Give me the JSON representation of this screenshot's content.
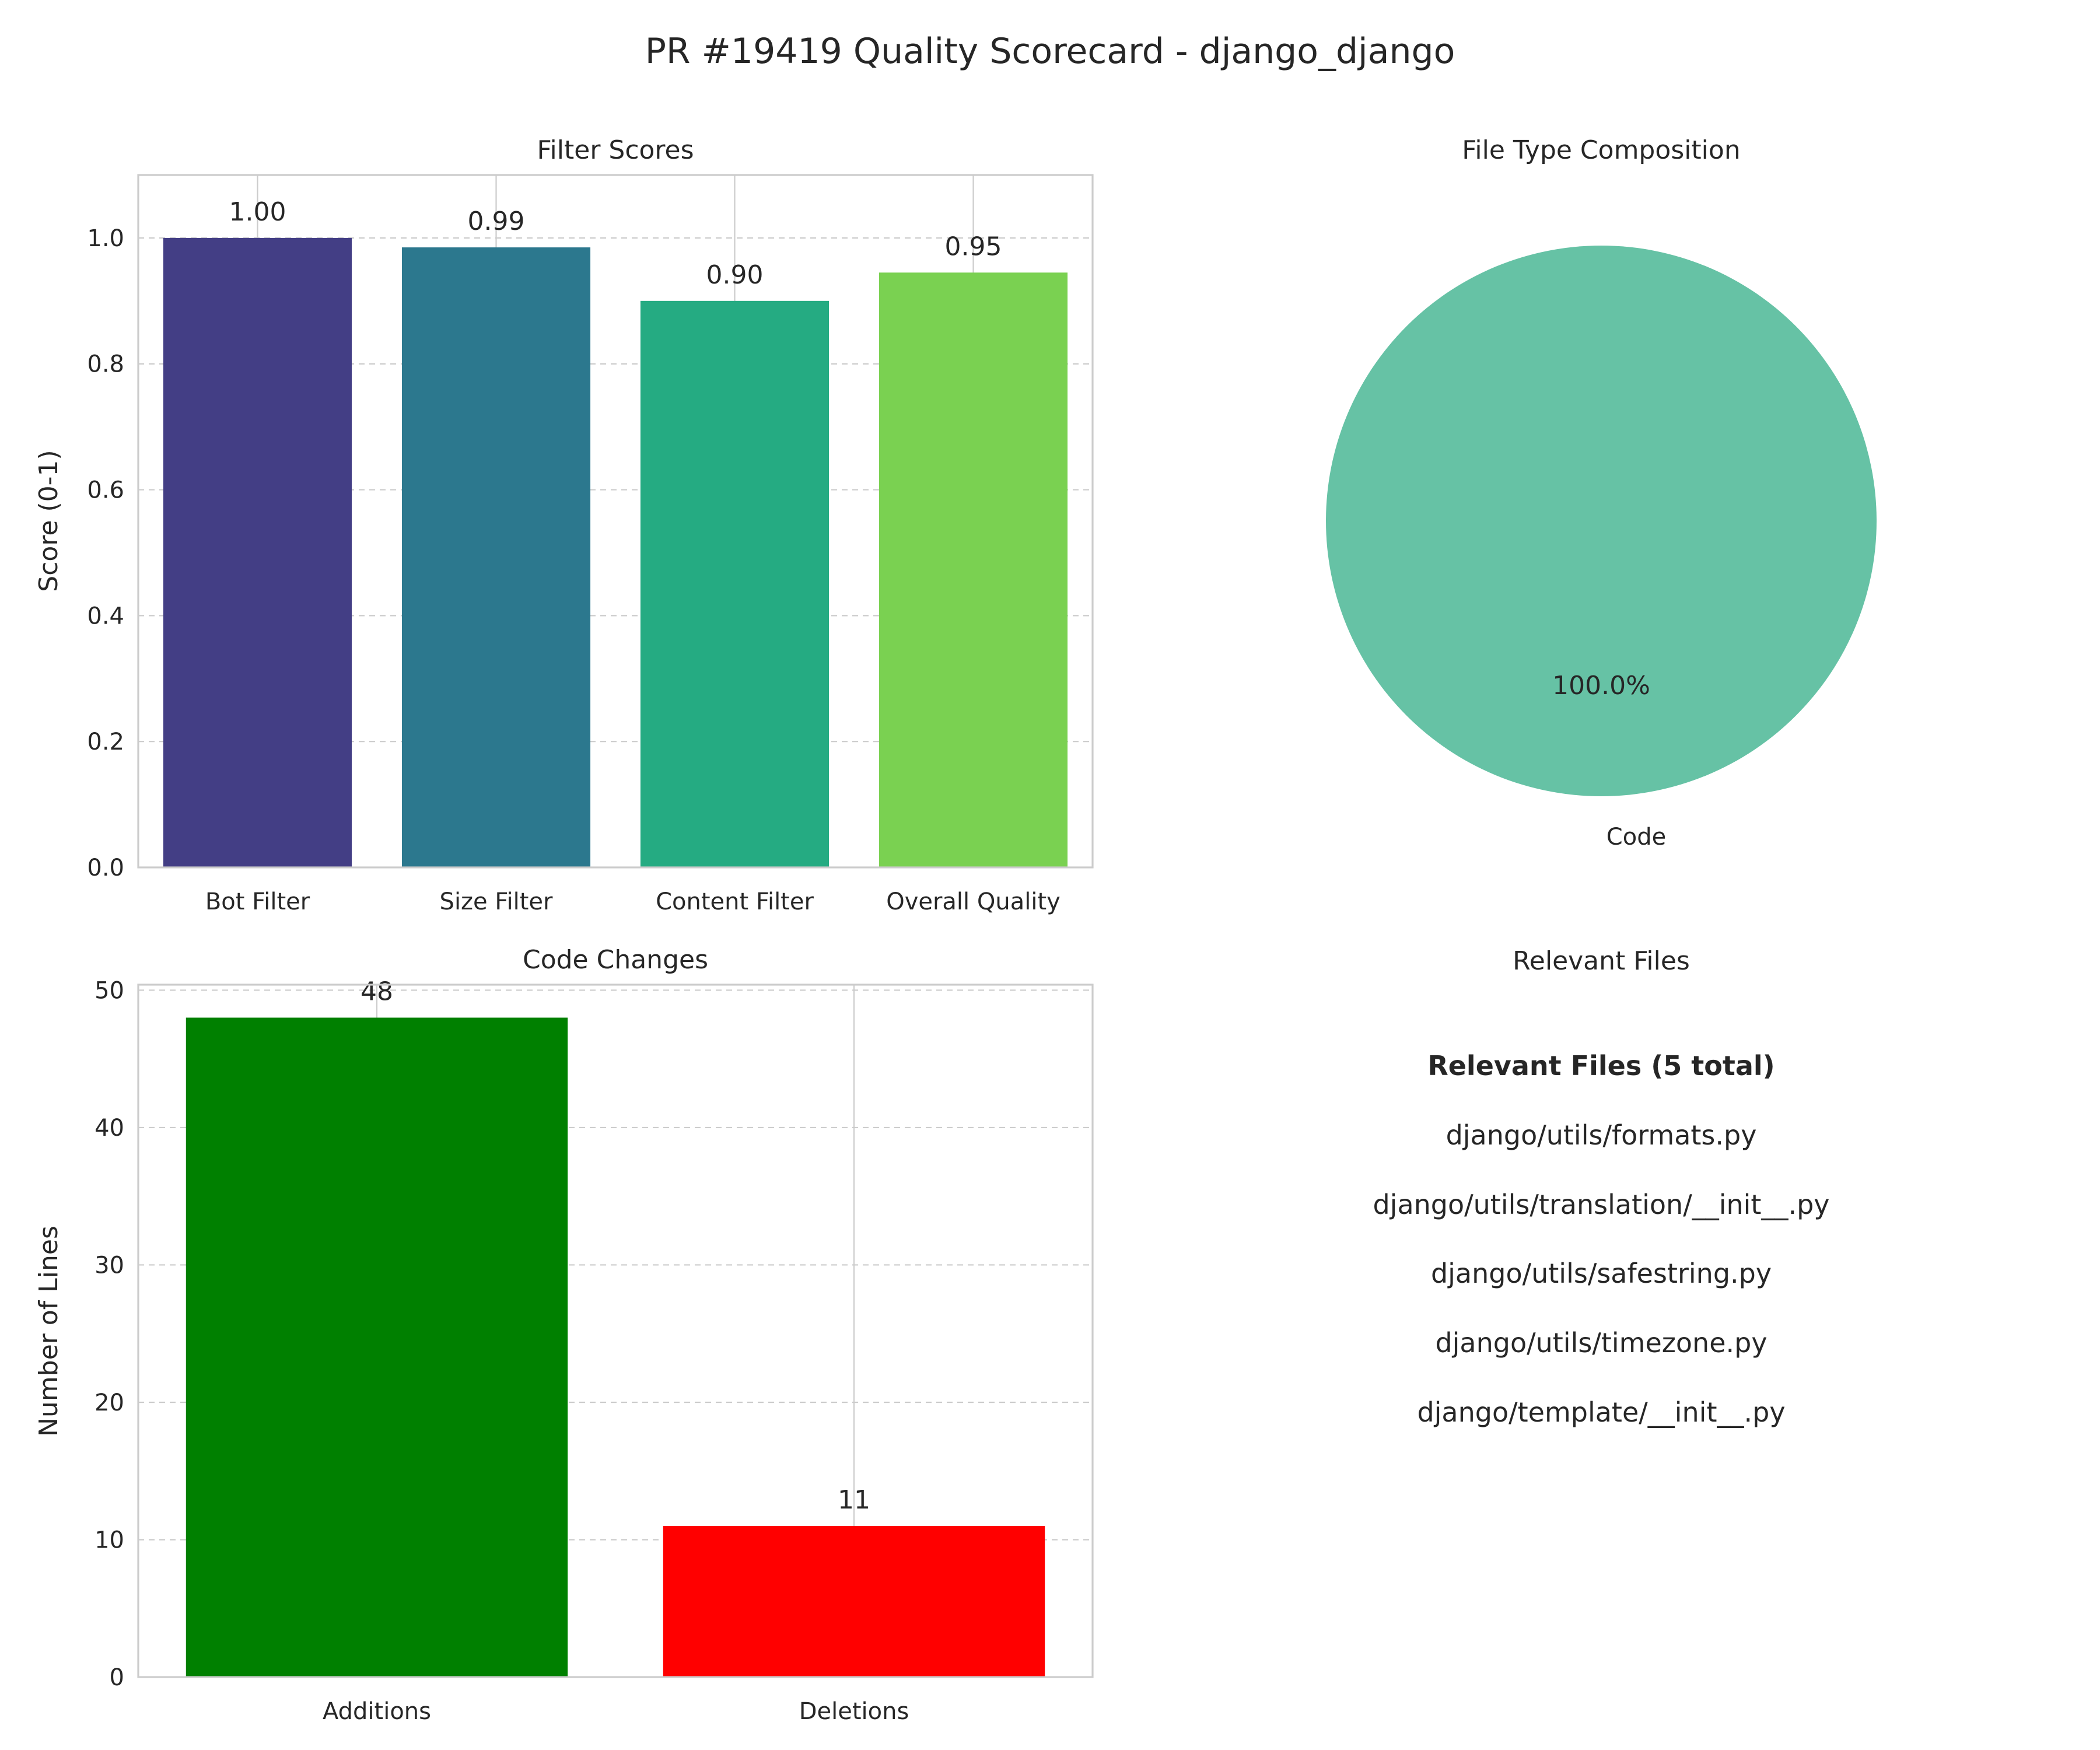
{
  "suptitle": "PR #19419 Quality Scorecard - django_django",
  "colors": {
    "frame": "#cccccc",
    "grid": "#cccccc",
    "text": "#262626",
    "pie": "#66c2a5"
  },
  "chart_data": [
    {
      "type": "bar",
      "title": "Filter Scores",
      "xlabel": "",
      "ylabel": "Score (0-1)",
      "ylim": [
        0,
        1.1
      ],
      "yticks": [
        0.0,
        0.2,
        0.4,
        0.6,
        0.8,
        1.0
      ],
      "ytick_labels": [
        "0.0",
        "0.2",
        "0.4",
        "0.6",
        "0.8",
        "1.0"
      ],
      "categories": [
        "Bot Filter",
        "Size Filter",
        "Content Filter",
        "Overall Quality"
      ],
      "values": [
        1.0,
        0.985,
        0.9,
        0.945
      ],
      "data_labels": [
        "1.00",
        "0.99",
        "0.90",
        "0.95"
      ],
      "colors": [
        "#433e85",
        "#2c788e",
        "#25ab82",
        "#7ad151"
      ],
      "grid": "y dashed"
    },
    {
      "type": "pie",
      "title": "File Type Composition",
      "labels": [
        "Code"
      ],
      "values": [
        100.0
      ],
      "pct_labels": [
        "100.0%"
      ],
      "colors": [
        "#66c2a5"
      ]
    },
    {
      "type": "bar",
      "title": "Code Changes",
      "xlabel": "",
      "ylabel": "Number of Lines",
      "ylim": [
        0,
        50.4
      ],
      "yticks": [
        0,
        10,
        20,
        30,
        40,
        50
      ],
      "ytick_labels": [
        "0",
        "10",
        "20",
        "30",
        "40",
        "50"
      ],
      "categories": [
        "Additions",
        "Deletions"
      ],
      "values": [
        48,
        11
      ],
      "data_labels": [
        "48",
        "11"
      ],
      "colors": [
        "#008000",
        "#ff0000"
      ],
      "grid": "y dashed"
    }
  ],
  "files_panel": {
    "title": "Relevant Files",
    "heading": "Relevant Files (5 total)",
    "items": [
      "django/utils/formats.py",
      "django/utils/translation/__init__.py",
      "django/utils/safestring.py",
      "django/utils/timezone.py",
      "django/template/__init__.py"
    ]
  }
}
